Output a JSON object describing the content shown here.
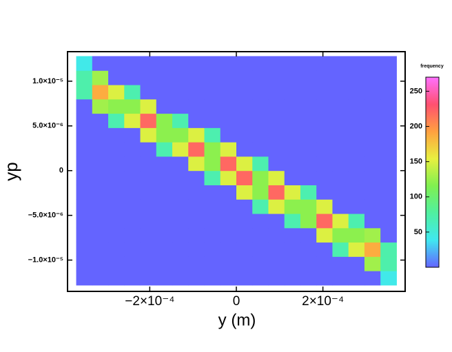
{
  "chart_data": {
    "type": "heatmap",
    "xlabel": "y (m)",
    "ylabel": "yp",
    "colorbar_label": "frequency",
    "x_bins": [
      -0.00037,
      -0.000333,
      -0.000296,
      -0.000259,
      -0.000222,
      -0.000185,
      -0.000148,
      -0.000111,
      -7.4e-05,
      -3.7e-05,
      0,
      3.7e-05,
      7.4e-05,
      0.000111,
      0.000148,
      0.000185,
      0.000222,
      0.000259,
      0.000296,
      0.000333,
      0.00037
    ],
    "y_bins": [
      -1.28e-05,
      -1.12e-05,
      -9.6e-06,
      -8e-06,
      -6.4e-06,
      -4.8e-06,
      -3.2e-06,
      -1.6e-06,
      0,
      1.6e-06,
      3.2e-06,
      4.8e-06,
      6.4e-06,
      8e-06,
      9.6e-06,
      1.12e-05,
      1.28e-05
    ],
    "z": [
      [
        0,
        0,
        0,
        0,
        0,
        0,
        0,
        0,
        0,
        0,
        0,
        0,
        0,
        0,
        0,
        0,
        0,
        0,
        0,
        42
      ],
      [
        0,
        0,
        0,
        0,
        0,
        0,
        0,
        0,
        0,
        0,
        0,
        0,
        0,
        0,
        0,
        0,
        0,
        0,
        128,
        72
      ],
      [
        0,
        0,
        0,
        0,
        0,
        0,
        0,
        0,
        0,
        0,
        0,
        0,
        0,
        0,
        0,
        0,
        70,
        150,
        187,
        72
      ],
      [
        0,
        0,
        0,
        0,
        0,
        0,
        0,
        0,
        0,
        0,
        0,
        0,
        0,
        0,
        0,
        150,
        120,
        120,
        128,
        0
      ],
      [
        0,
        0,
        0,
        0,
        0,
        0,
        0,
        0,
        0,
        0,
        0,
        0,
        0,
        70,
        120,
        220,
        150,
        70,
        0,
        0
      ],
      [
        0,
        0,
        0,
        0,
        0,
        0,
        0,
        0,
        0,
        0,
        0,
        70,
        150,
        120,
        120,
        150,
        0,
        0,
        0,
        0
      ],
      [
        0,
        0,
        0,
        0,
        0,
        0,
        0,
        0,
        0,
        0,
        150,
        120,
        220,
        150,
        70,
        0,
        0,
        0,
        0,
        0
      ],
      [
        0,
        0,
        0,
        0,
        0,
        0,
        0,
        0,
        70,
        150,
        220,
        120,
        150,
        0,
        0,
        0,
        0,
        0,
        0,
        0
      ],
      [
        0,
        0,
        0,
        0,
        0,
        0,
        0,
        150,
        120,
        220,
        150,
        70,
        0,
        0,
        0,
        0,
        0,
        0,
        0,
        0
      ],
      [
        0,
        0,
        0,
        0,
        0,
        70,
        150,
        220,
        120,
        150,
        0,
        0,
        0,
        0,
        0,
        0,
        0,
        0,
        0,
        0
      ],
      [
        0,
        0,
        0,
        0,
        150,
        120,
        120,
        150,
        70,
        0,
        0,
        0,
        0,
        0,
        0,
        0,
        0,
        0,
        0,
        0
      ],
      [
        0,
        0,
        70,
        150,
        220,
        120,
        70,
        0,
        0,
        0,
        0,
        0,
        0,
        0,
        0,
        0,
        0,
        0,
        0,
        0
      ],
      [
        0,
        128,
        120,
        120,
        150,
        0,
        0,
        0,
        0,
        0,
        0,
        0,
        0,
        0,
        0,
        0,
        0,
        0,
        0,
        0
      ],
      [
        72,
        187,
        150,
        70,
        0,
        0,
        0,
        0,
        0,
        0,
        0,
        0,
        0,
        0,
        0,
        0,
        0,
        0,
        0,
        0
      ],
      [
        72,
        128,
        0,
        0,
        0,
        0,
        0,
        0,
        0,
        0,
        0,
        0,
        0,
        0,
        0,
        0,
        0,
        0,
        0,
        0
      ],
      [
        42,
        0,
        0,
        0,
        0,
        0,
        0,
        0,
        0,
        0,
        0,
        0,
        0,
        0,
        0,
        0,
        0,
        0,
        0,
        0
      ]
    ],
    "xlim": [
      -0.00039,
      0.00039
    ],
    "ylim": [
      -1.35e-05,
      1.33e-05
    ],
    "xticks": [
      {
        "value": -0.0002,
        "label": "−2×10⁻⁴"
      },
      0,
      {
        "value": 0.0002,
        "label": "2×10⁻⁴"
      }
    ],
    "yticks": [
      {
        "value": -1e-05,
        "label": "−1.0×10⁻⁵"
      },
      {
        "value": -5e-06,
        "label": "−5.0×10⁻⁶"
      },
      0,
      {
        "value": 5e-06,
        "label": "5.0×10⁻⁶"
      },
      {
        "value": 1e-05,
        "label": "1.0×10⁻⁵"
      }
    ],
    "clim": [
      0,
      270
    ],
    "cticks": [
      50,
      100,
      150,
      200,
      250
    ],
    "colorscale": [
      "#6464ff",
      "#40e8f0",
      "#50f0a0",
      "#80f050",
      "#e8f040",
      "#ffa040",
      "#ff5070",
      "#ff70ff"
    ]
  }
}
